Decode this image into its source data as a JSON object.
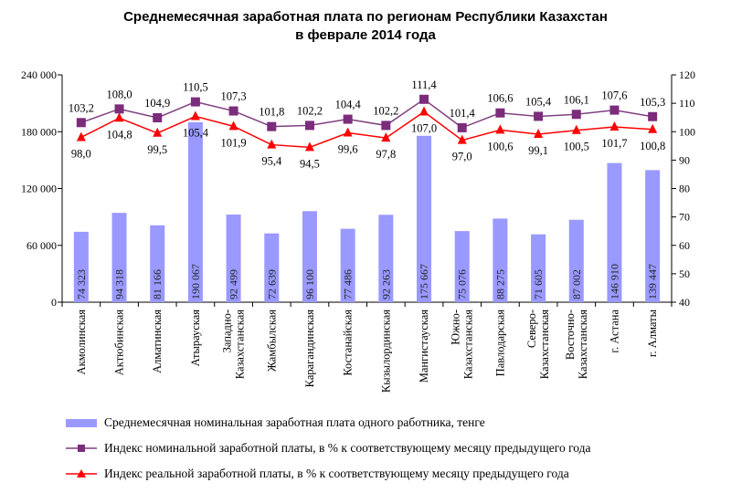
{
  "chart_data": {
    "type": "bar+line",
    "title_line1": "Среднемесячная заработная плата по регионам Республики Казахстан",
    "title_line2": "в феврале 2014 года",
    "categories": [
      "Акмолинская",
      "Актюбинская",
      "Алматинская",
      "Атырауская",
      "Западно-Казахстанская",
      "Жамбылская",
      "Карагандинская",
      "Костанайская",
      "Кызылординская",
      "Мангистауская",
      "Южно-Казахстанская",
      "Павлодарская",
      "Северо-Казахстанская",
      "Восточно-Казахстанская",
      "г. Астана",
      "г. Алматы"
    ],
    "category_lines": [
      [
        "Акмолинская"
      ],
      [
        "Актюбинская"
      ],
      [
        "Алматинская"
      ],
      [
        "Атырауская"
      ],
      [
        "Западно-",
        "Казахстанская"
      ],
      [
        "Жамбылская"
      ],
      [
        "Карагандинская"
      ],
      [
        "Костанайская"
      ],
      [
        "Кызылординская"
      ],
      [
        "Мангистауская"
      ],
      [
        "Южно-",
        "Казахстанская"
      ],
      [
        "Павлодарская"
      ],
      [
        "Северо-",
        "Казахстанская"
      ],
      [
        "Восточно-",
        "Казахстанская"
      ],
      [
        "г. Астана"
      ],
      [
        "г. Алматы"
      ]
    ],
    "left_axis": {
      "ylim": [
        0,
        240000
      ],
      "ticks": [
        "0",
        "60 000",
        "120 000",
        "180 000",
        "240 000"
      ]
    },
    "right_axis": {
      "ylim": [
        40,
        120
      ],
      "ticks": [
        "40",
        "50",
        "60",
        "70",
        "80",
        "90",
        "100",
        "110",
        "120"
      ]
    },
    "series": [
      {
        "name": "Среднемесячная номинальная заработная плата одного работника, тенге",
        "type": "bar",
        "axis": "left",
        "color": "#9999ff",
        "values": [
          74323,
          94318,
          81166,
          190067,
          92499,
          72639,
          96100,
          77486,
          92263,
          175667,
          75076,
          88275,
          71605,
          87002,
          146910,
          139447
        ],
        "labels": [
          "74 323",
          "94 318",
          "81 166",
          "190 067",
          "92 499",
          "72 639",
          "96 100",
          "77 486",
          "92 263",
          "175 667",
          "75 076",
          "88 275",
          "71 605",
          "87 002",
          "146 910",
          "139 447"
        ]
      },
      {
        "name": "Индекс номинальной заработной платы, в % к соответствующему месяцу предыдущего года",
        "type": "line",
        "axis": "right",
        "color": "#7f3f7f",
        "marker_color": "#7b2c7b",
        "values": [
          103.2,
          108.0,
          104.9,
          110.5,
          107.3,
          101.8,
          102.2,
          104.4,
          102.2,
          111.4,
          101.4,
          106.6,
          105.4,
          106.1,
          107.6,
          105.3
        ],
        "labels": [
          "103,2",
          "108,0",
          "104,9",
          "110,5",
          "107,3",
          "101,8",
          "102,2",
          "104,4",
          "102,2",
          "111,4",
          "101,4",
          "106,6",
          "105,4",
          "106,1",
          "107,6",
          "105,3"
        ]
      },
      {
        "name": "Индекс реальной заработной платы, в % к соответствующему месяцу предыдущего года",
        "type": "line",
        "axis": "right",
        "color": "#ff0000",
        "marker_color": "#ff0000",
        "values": [
          98.0,
          104.8,
          99.5,
          105.4,
          101.9,
          95.4,
          94.5,
          99.6,
          97.8,
          107.0,
          97.0,
          100.6,
          99.1,
          100.5,
          101.7,
          100.8
        ],
        "labels": [
          "98,0",
          "104,8",
          "99,5",
          "105,4",
          "101,9",
          "95,4",
          "94,5",
          "99,6",
          "97,8",
          "107,0",
          "97,0",
          "100,6",
          "99,1",
          "100,5",
          "101,7",
          "100,8"
        ]
      }
    ],
    "legend_position": "bottom"
  }
}
